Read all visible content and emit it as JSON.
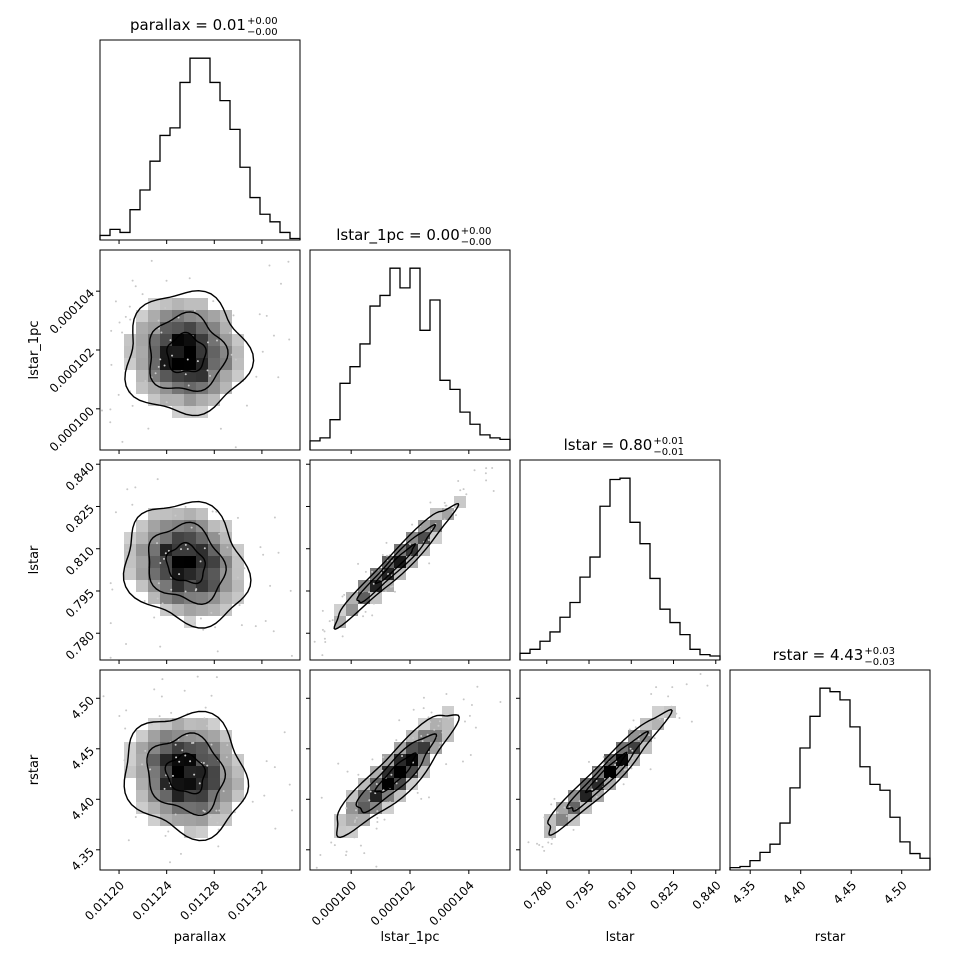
{
  "chart_data": {
    "type": "corner",
    "parameters": [
      "parallax",
      "lstar_1pc",
      "lstar",
      "rstar"
    ],
    "axis_labels": [
      "parallax",
      "lstar_1pc",
      "lstar",
      "rstar"
    ],
    "titles": [
      {
        "name": "parallax",
        "value": "0.01",
        "plus": "+0.00",
        "minus": "−0.00"
      },
      {
        "name": "lstar_1pc",
        "value": "0.00",
        "plus": "+0.00",
        "minus": "−0.00"
      },
      {
        "name": "lstar",
        "value": "0.80",
        "plus": "+0.01",
        "minus": "−0.01"
      },
      {
        "name": "rstar",
        "value": "4.43",
        "plus": "+0.03",
        "minus": "−0.03"
      }
    ],
    "ranges": [
      [
        0.011184,
        0.011352
      ],
      [
        9.86e-05,
        0.0001054
      ],
      [
        0.7705,
        0.8415
      ],
      [
        4.33,
        4.528
      ]
    ],
    "ticks": [
      [
        0.0112,
        0.01124,
        0.01128,
        0.01132
      ],
      [
        0.0001,
        0.000102,
        0.000104
      ],
      [
        0.78,
        0.795,
        0.81,
        0.825,
        0.84
      ],
      [
        4.35,
        4.4,
        4.45,
        4.5
      ]
    ],
    "tick_labels": [
      [
        "0.01120",
        "0.01124",
        "0.01128",
        "0.01132"
      ],
      [
        "0.000100",
        "0.000102",
        "0.000104"
      ],
      [
        "0.780",
        "0.795",
        "0.810",
        "0.825",
        "0.840"
      ],
      [
        "4.35",
        "4.40",
        "4.45",
        "4.50"
      ]
    ],
    "hist_counts": [
      [
        3,
        7,
        5,
        20,
        33,
        52,
        69,
        74,
        104,
        120,
        120,
        104,
        92,
        73,
        48,
        28,
        17,
        12,
        5,
        1
      ],
      [
        6,
        8,
        20,
        44,
        55,
        70,
        95,
        102,
        120,
        107,
        120,
        79,
        99,
        46,
        40,
        25,
        17,
        10,
        8,
        7
      ],
      [
        5,
        8,
        14,
        21,
        32,
        43,
        62,
        77,
        115,
        135,
        136,
        103,
        87,
        61,
        38,
        28,
        19,
        8,
        4,
        3
      ],
      [
        2,
        3,
        8,
        15,
        22,
        40,
        70,
        104,
        131,
        155,
        152,
        145,
        122,
        88,
        73,
        68,
        45,
        24,
        14,
        10
      ]
    ],
    "grid": false,
    "legend": "none"
  }
}
